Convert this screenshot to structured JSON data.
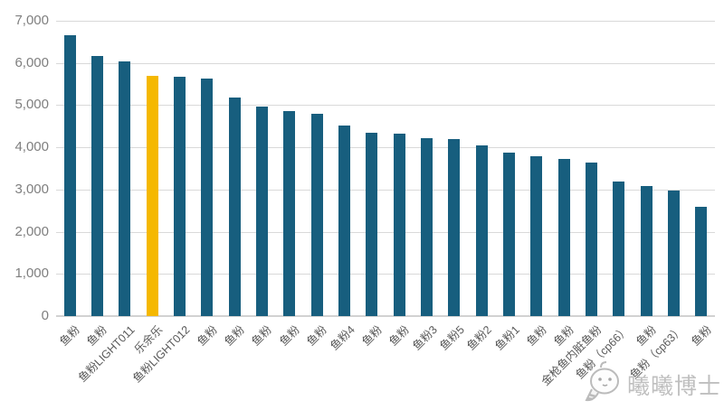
{
  "chart_data": {
    "type": "bar",
    "title": "",
    "xlabel": "",
    "ylabel": "",
    "legend": "none",
    "grid": true,
    "ylim": [
      0,
      7000
    ],
    "ytick_step": 1000,
    "ytick_labels": [
      "0",
      "1,000",
      "2,000",
      "3,000",
      "4,000",
      "5,000",
      "6,000",
      "7,000"
    ],
    "categories": [
      "鱼粉",
      "鱼粉",
      "鱼粉LIGHT011",
      "乐余乐",
      "鱼粉LIGHT012",
      "鱼粉",
      "鱼粉",
      "鱼粉",
      "鱼粉",
      "鱼粉",
      "鱼粉4",
      "鱼粉",
      "鱼粉",
      "鱼粉3",
      "鱼粉5",
      "鱼粉2",
      "鱼粉1",
      "鱼粉",
      "鱼粉",
      "金枪鱼内脏鱼粉",
      "鱼粉（cp66）",
      "鱼粉",
      "鱼粉（cp63）",
      "鱼粉"
    ],
    "values": [
      6650,
      6170,
      6040,
      5700,
      5670,
      5620,
      5180,
      4970,
      4850,
      4800,
      4520,
      4350,
      4330,
      4210,
      4200,
      4050,
      3870,
      3790,
      3730,
      3650,
      3190,
      3080,
      2970,
      2590
    ],
    "bar_color": "#175E7E",
    "highlight": {
      "index": 3,
      "category": "乐余乐",
      "color": "#F5B800"
    }
  },
  "colors": {
    "background": "#FFFFFF",
    "gridline": "#D9D9D9",
    "axis_line": "#D2D2D2",
    "ytick_label": "#7F7F7F",
    "xtick_label": "#595959",
    "watermark": "#B5B5B5"
  },
  "watermark": {
    "text": "曦曦博士",
    "logo_icon": "cartoon-bee-face"
  }
}
